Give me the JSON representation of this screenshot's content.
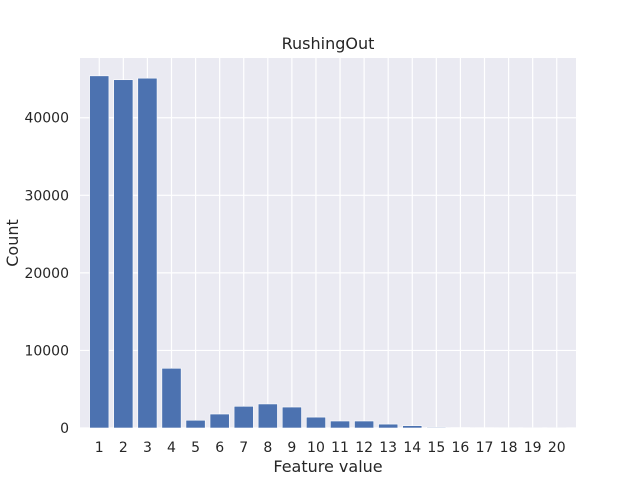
{
  "chart_data": {
    "type": "bar",
    "title": "RushingOut",
    "xlabel": "Feature value",
    "ylabel": "Count",
    "categories": [
      "1",
      "2",
      "3",
      "4",
      "5",
      "6",
      "7",
      "8",
      "9",
      "10",
      "11",
      "12",
      "13",
      "14",
      "15",
      "16",
      "17",
      "18",
      "19",
      "20"
    ],
    "values": [
      45400,
      44900,
      45100,
      7700,
      1000,
      1800,
      2800,
      3100,
      2700,
      1400,
      900,
      900,
      500,
      300,
      100,
      50,
      30,
      20,
      10,
      10
    ],
    "yticks": [
      0,
      10000,
      20000,
      30000,
      40000
    ],
    "ylim": [
      0,
      47700
    ],
    "xlim": [
      0.2,
      20.8
    ],
    "grid": true,
    "colors": {
      "bar": "#4c72b0",
      "background": "#eaeaf2",
      "grid": "#ffffff"
    }
  }
}
